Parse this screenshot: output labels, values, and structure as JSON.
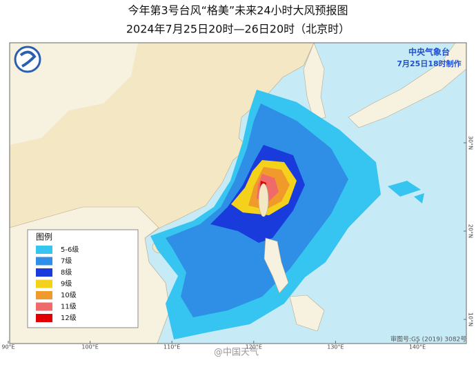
{
  "header": {
    "title": "今年第3号台风“格美”未来24小时大风预报图",
    "subtitle": "2024年7月25日20时—26日20时（北京时）"
  },
  "issuer": {
    "agency": "中央气象台",
    "made": "7月25日18时制作"
  },
  "legend": {
    "title": "图例",
    "items": [
      "5-6级",
      "7级",
      "8级",
      "9级",
      "10级",
      "11级",
      "12级"
    ]
  },
  "longitudes": [
    "90°E",
    "100°E",
    "110°E",
    "120°E",
    "130°E",
    "140°E"
  ],
  "latitudes": [
    "30°N",
    "20°N",
    "10°N"
  ],
  "map_review": "审图号:GS (2019) 3082号",
  "watermark": "@中国天气"
}
